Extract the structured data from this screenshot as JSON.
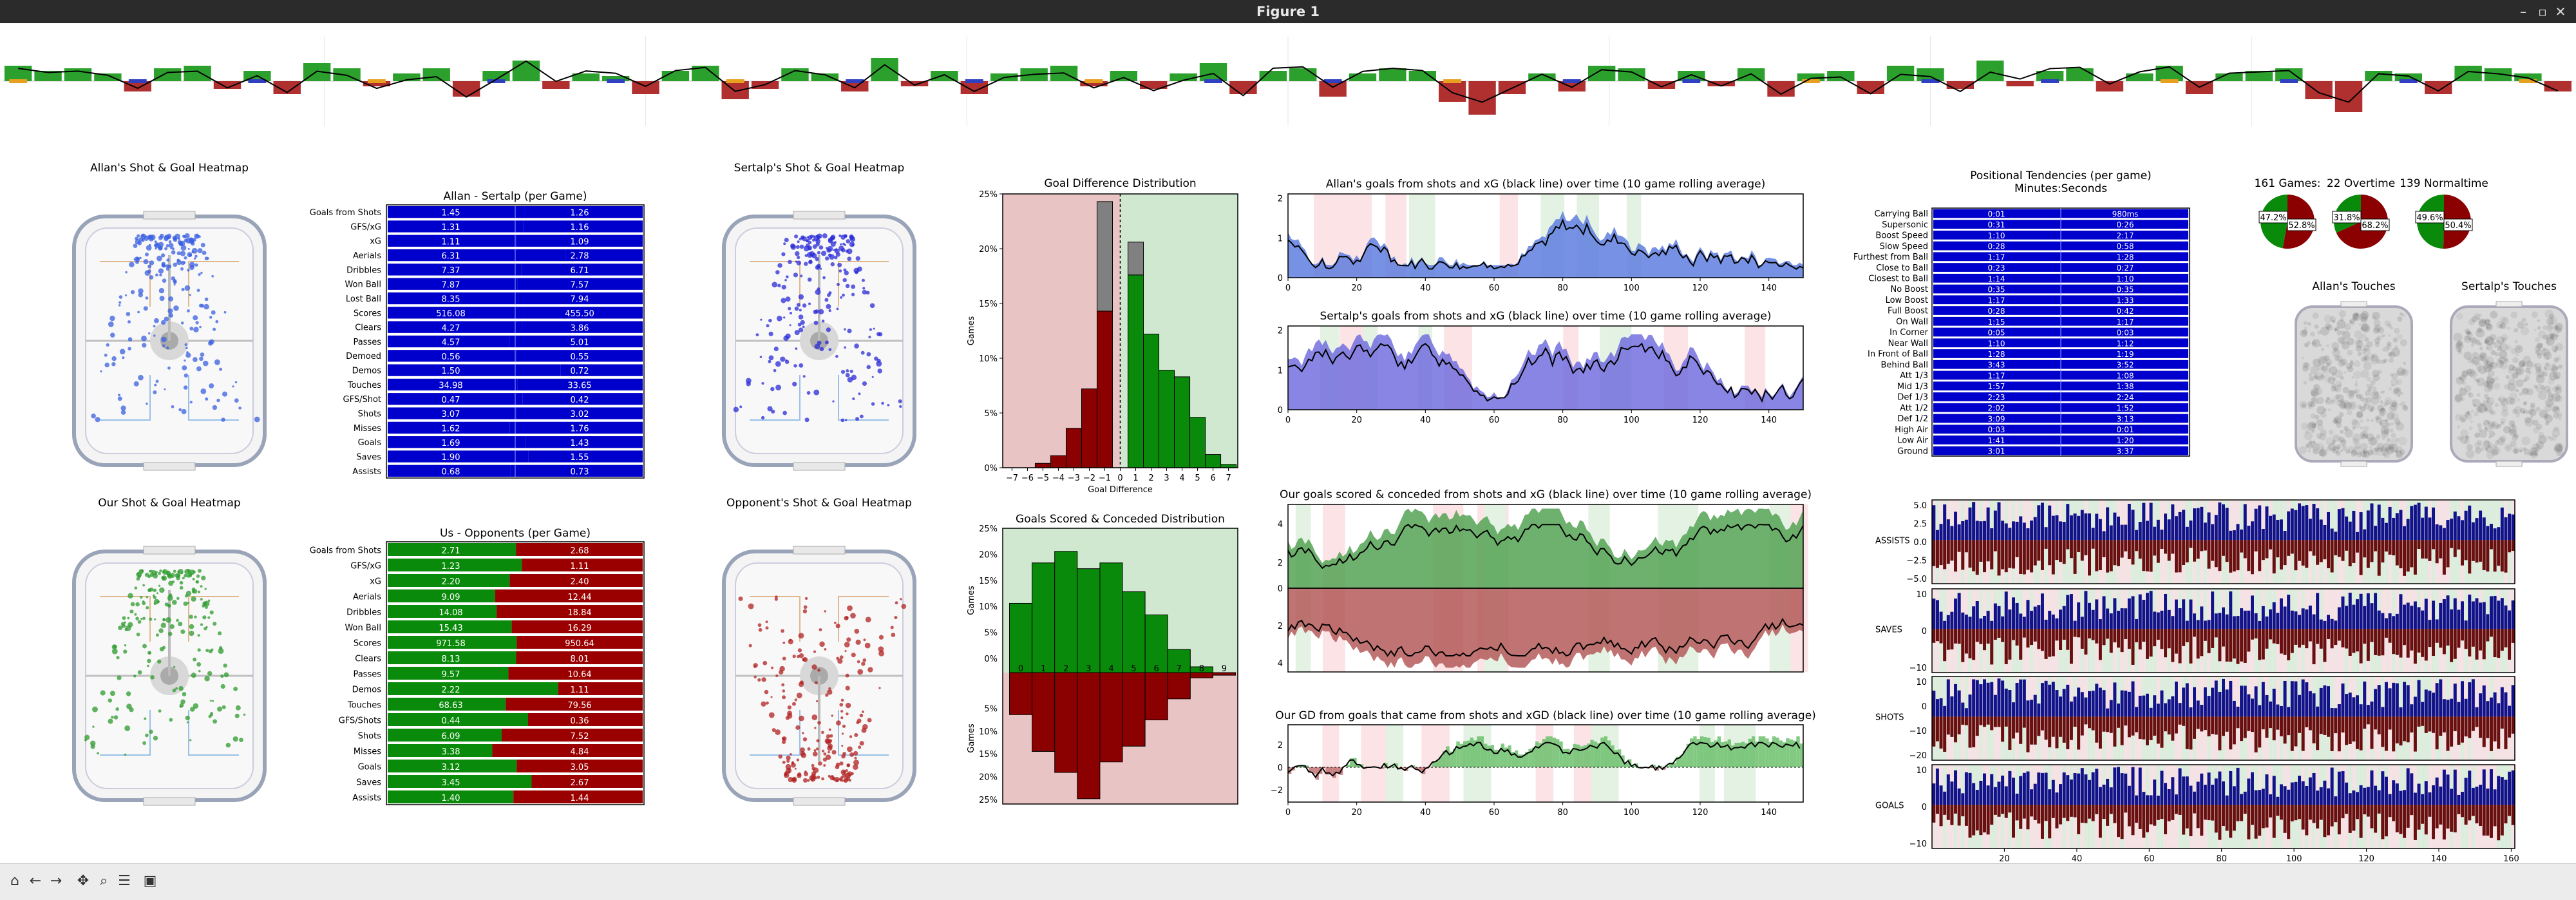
{
  "window": {
    "title": "Figure 1"
  },
  "toolbar": {
    "buttons": [
      {
        "name": "home-icon",
        "glyph": "⌂"
      },
      {
        "name": "back-icon",
        "glyph": "←"
      },
      {
        "name": "forward-icon",
        "glyph": "→"
      },
      {
        "name": "pan-icon",
        "glyph": "✥"
      },
      {
        "name": "zoom-icon",
        "glyph": "⌕"
      },
      {
        "name": "configure-icon",
        "glyph": "☰"
      },
      {
        "name": "save-icon",
        "glyph": "▣"
      }
    ]
  },
  "colors": {
    "green": "#2e8b2e",
    "red": "#8b0000",
    "blue": "#0000cc",
    "lightblue": "#6f8fe0",
    "gray": "#808080",
    "shade_green": "#cfe8cf",
    "shade_red": "#e8c4c4"
  },
  "top_strip": {
    "values": [
      0.6,
      0.4,
      0.5,
      0.3,
      -0.4,
      0.5,
      0.6,
      -0.3,
      0.4,
      -0.5,
      0.7,
      0.5,
      -0.2,
      0.3,
      0.5,
      -0.6,
      0.4,
      0.8,
      -0.3,
      0.3,
      0.2,
      -0.5,
      0.4,
      0.6,
      -0.7,
      -0.3,
      0.5,
      0.3,
      -0.4,
      0.9,
      -0.2,
      0.4,
      -0.5,
      0.3,
      0.5,
      0.6,
      -0.2,
      0.4,
      -0.3,
      0.3,
      0.7,
      -0.5,
      0.4,
      0.5,
      -0.6,
      0.3,
      0.5,
      0.4,
      -0.8,
      -1.3,
      -0.5,
      0.3,
      -0.4,
      0.6,
      0.5,
      -0.3,
      0.4,
      -0.2,
      0.5,
      -0.6,
      0.3,
      0.4,
      -0.5,
      0.6,
      0.5,
      -0.3,
      0.8,
      -0.2,
      0.4,
      0.5,
      -0.4,
      0.3,
      0.6,
      -0.5,
      0.3,
      0.4,
      0.5,
      -0.7,
      -1.2,
      0.4,
      0.3,
      -0.5,
      0.6,
      0.5,
      0.3,
      -0.4
    ]
  },
  "heatmaps": [
    {
      "title": "Allan's Shot & Goal Heatmap",
      "color": "#3a5fe0",
      "mode": "top"
    },
    {
      "title": "Sertalp's Shot & Goal Heatmap",
      "color": "#2a2ad8",
      "mode": "top"
    },
    {
      "title": "Our Shot & Goal Heatmap",
      "color": "#2e9b2e",
      "mode": "top"
    },
    {
      "title": "Opponent's Shot & Goal Heatmap",
      "color": "#b22222",
      "mode": "bottom"
    }
  ],
  "compare_tables": [
    {
      "title": "Allan - Sertalp (per Game)",
      "left_color": "#0000cc",
      "right_color": "#0000cc",
      "rows": [
        [
          "Goals from Shots",
          "1.45",
          "1.26"
        ],
        [
          "GFS/xG",
          "1.31",
          "1.16"
        ],
        [
          "xG",
          "1.11",
          "1.09"
        ],
        [
          "Aerials",
          "6.31",
          "2.78"
        ],
        [
          "Dribbles",
          "7.37",
          "6.71"
        ],
        [
          "Won Ball",
          "7.87",
          "7.57"
        ],
        [
          "Lost Ball",
          "8.35",
          "7.94"
        ],
        [
          "Scores",
          "516.08",
          "455.50"
        ],
        [
          "Clears",
          "4.27",
          "3.86"
        ],
        [
          "Passes",
          "4.57",
          "5.01"
        ],
        [
          "Demoed",
          "0.56",
          "0.55"
        ],
        [
          "Demos",
          "1.50",
          "0.72"
        ],
        [
          "Touches",
          "34.98",
          "33.65"
        ],
        [
          "GFS/Shot",
          "0.47",
          "0.42"
        ],
        [
          "Shots",
          "3.07",
          "3.02"
        ],
        [
          "Misses",
          "1.62",
          "1.76"
        ],
        [
          "Goals",
          "1.69",
          "1.43"
        ],
        [
          "Saves",
          "1.90",
          "1.55"
        ],
        [
          "Assists",
          "0.68",
          "0.73"
        ]
      ]
    },
    {
      "title": "Us - Opponents (per Game)",
      "left_color": "#0a8a0a",
      "right_color": "#9b0000",
      "rows": [
        [
          "Goals from Shots",
          "2.71",
          "2.68"
        ],
        [
          "GFS/xG",
          "1.23",
          "1.11"
        ],
        [
          "xG",
          "2.20",
          "2.40"
        ],
        [
          "Aerials",
          "9.09",
          "12.44"
        ],
        [
          "Dribbles",
          "14.08",
          "18.84"
        ],
        [
          "Won Ball",
          "15.43",
          "16.29"
        ],
        [
          "Scores",
          "971.58",
          "950.64"
        ],
        [
          "Clears",
          "8.13",
          "8.01"
        ],
        [
          "Passes",
          "9.57",
          "10.64"
        ],
        [
          "Demos",
          "2.22",
          "1.11"
        ],
        [
          "Touches",
          "68.63",
          "79.56"
        ],
        [
          "GFS/Shots",
          "0.44",
          "0.36"
        ],
        [
          "Shots",
          "6.09",
          "7.52"
        ],
        [
          "Misses",
          "3.38",
          "4.84"
        ],
        [
          "Goals",
          "3.12",
          "3.05"
        ],
        [
          "Saves",
          "3.45",
          "2.67"
        ],
        [
          "Assists",
          "1.40",
          "1.44"
        ]
      ]
    }
  ],
  "chart_data": [
    {
      "type": "bar",
      "title": "Goal Difference Distribution",
      "xlabel": "Goal Difference",
      "ylabel": "Games",
      "categories": [
        "−7",
        "−6",
        "−5",
        "−4",
        "−3",
        "−2",
        "−1",
        "0",
        "1",
        "2",
        "3",
        "4",
        "5",
        "6",
        "7"
      ],
      "x": [
        -7,
        -6,
        -5,
        -4,
        -3,
        -2,
        -1,
        1,
        2,
        3,
        4,
        5,
        6,
        7
      ],
      "values": [
        0,
        0,
        0.4,
        1.1,
        3.6,
        7.2,
        14.3,
        17.6,
        12.2,
        8.9,
        8.3,
        4.6,
        1.2,
        0.3
      ],
      "overtime_values": [
        0,
        0,
        0,
        0,
        0,
        0,
        10.0,
        3.0,
        0,
        0,
        0,
        0,
        0,
        0
      ],
      "ylim": [
        0,
        25
      ],
      "yticks": [
        "0%",
        "5%",
        "10%",
        "15%",
        "20%",
        "25%"
      ]
    },
    {
      "type": "bar",
      "title": "Goals Scored & Conceded Distribution",
      "ylabel": "Games",
      "x": [
        0,
        1,
        2,
        3,
        4,
        5,
        6,
        7,
        8,
        9
      ],
      "series": [
        {
          "name": "scored",
          "values": [
            12,
            19,
            21,
            18,
            19,
            14,
            10,
            4,
            1,
            0
          ]
        },
        {
          "name": "conceded",
          "values": [
            8,
            15,
            19,
            24,
            17,
            14,
            9,
            5,
            1,
            0.5
          ]
        }
      ],
      "yticks_top": [
        "0%",
        "5%",
        "10%",
        "15%",
        "20%",
        "25%"
      ],
      "yticks_bottom": [
        "5%",
        "10%",
        "15%",
        "20%",
        "25%"
      ]
    },
    {
      "type": "area",
      "title": "Allan's goals from shots and xG (black line) over time (10 game rolling average)",
      "ylim": [
        0,
        2
      ],
      "yticks": [
        "0",
        "1",
        "2"
      ],
      "xticks": [
        "0",
        "20",
        "40",
        "60",
        "80",
        "100",
        "120",
        "140"
      ]
    },
    {
      "type": "area",
      "title": "Sertalp's goals from shots and xG (black line) over time (10 game rolling average)",
      "ylim": [
        0,
        2
      ],
      "yticks": [
        "0",
        "1",
        "2"
      ],
      "xticks": [
        "0",
        "20",
        "40",
        "60",
        "80",
        "100",
        "120",
        "140"
      ]
    },
    {
      "type": "area",
      "title": "Our goals scored & conceded from shots and xG (black line) over time (10 game rolling average)",
      "yticks_top": [
        "2",
        "4"
      ],
      "yticks_bottom": [
        "0",
        "2",
        "4"
      ]
    },
    {
      "type": "area",
      "title": "Our GD from goals that came from shots and xGD (black line) over time (10 game rolling average)",
      "yticks": [
        "2",
        "0",
        "−2"
      ],
      "xticks": [
        "0",
        "20",
        "40",
        "60",
        "80",
        "100",
        "120",
        "140"
      ]
    },
    {
      "type": "bar",
      "title": "Positional Tendencies (per game)",
      "subtitle": "Minutes:Seconds",
      "rows": [
        [
          "Carrying Ball",
          "0:01",
          "980ms"
        ],
        [
          "Supersonic",
          "0:31",
          "0:26"
        ],
        [
          "Boost Speed",
          "1:10",
          "2:17"
        ],
        [
          "Slow Speed",
          "0:28",
          "0:58"
        ],
        [
          "Furthest from Ball",
          "1:17",
          "1:28"
        ],
        [
          "Close to Ball",
          "0:23",
          "0:27"
        ],
        [
          "Closest to Ball",
          "1:14",
          "1:10"
        ],
        [
          "No Boost",
          "0:35",
          "0:35"
        ],
        [
          "Low Boost",
          "1:17",
          "1:33"
        ],
        [
          "Full Boost",
          "0:28",
          "0:42"
        ],
        [
          "On Wall",
          "1:15",
          "1:17"
        ],
        [
          "In Corner",
          "0:05",
          "0:03"
        ],
        [
          "Near Wall",
          "1:10",
          "1:12"
        ],
        [
          "In Front of Ball",
          "1:28",
          "1:19"
        ],
        [
          "Behind Ball",
          "3:43",
          "3:52"
        ],
        [
          "Att 1/3",
          "1:17",
          "1:08"
        ],
        [
          "Mid 1/3",
          "1:57",
          "1:38"
        ],
        [
          "Def 1/3",
          "2:23",
          "2:24"
        ],
        [
          "Att 1/2",
          "2:02",
          "1:52"
        ],
        [
          "Def 1/2",
          "3:09",
          "3:13"
        ],
        [
          "High Air",
          "0:03",
          "0:01"
        ],
        [
          "Low Air",
          "1:41",
          "1:20"
        ],
        [
          "Ground",
          "3:01",
          "3:37"
        ]
      ]
    },
    {
      "type": "pie",
      "title": "161 Games:",
      "labels": [
        "52.8%",
        "47.2%"
      ],
      "values": [
        52.8,
        47.2
      ]
    },
    {
      "type": "pie",
      "title": "22 Overtime",
      "labels": [
        "68.2%",
        "31.8%"
      ],
      "values": [
        68.2,
        31.8
      ]
    },
    {
      "type": "pie",
      "title": "139 Normaltime",
      "labels": [
        "50.4%",
        "49.6%"
      ],
      "values": [
        50.4,
        49.6
      ]
    },
    {
      "type": "bar",
      "title": "ASSISTS",
      "yticks": [
        "5.0",
        "2.5",
        "0.0",
        "−2.5",
        "−5.0"
      ]
    },
    {
      "type": "bar",
      "title": "SAVES",
      "yticks": [
        "10",
        "0",
        "−10"
      ]
    },
    {
      "type": "bar",
      "title": "SHOTS",
      "yticks": [
        "10",
        "0",
        "−10",
        "−20"
      ]
    },
    {
      "type": "bar",
      "title": "GOALS",
      "yticks": [
        "10",
        "0",
        "−10"
      ],
      "xticks": [
        "20",
        "40",
        "60",
        "80",
        "100",
        "120",
        "140",
        "160"
      ]
    }
  ],
  "touches": [
    {
      "title": "Allan's Touches"
    },
    {
      "title": "Sertalp's Touches"
    }
  ]
}
